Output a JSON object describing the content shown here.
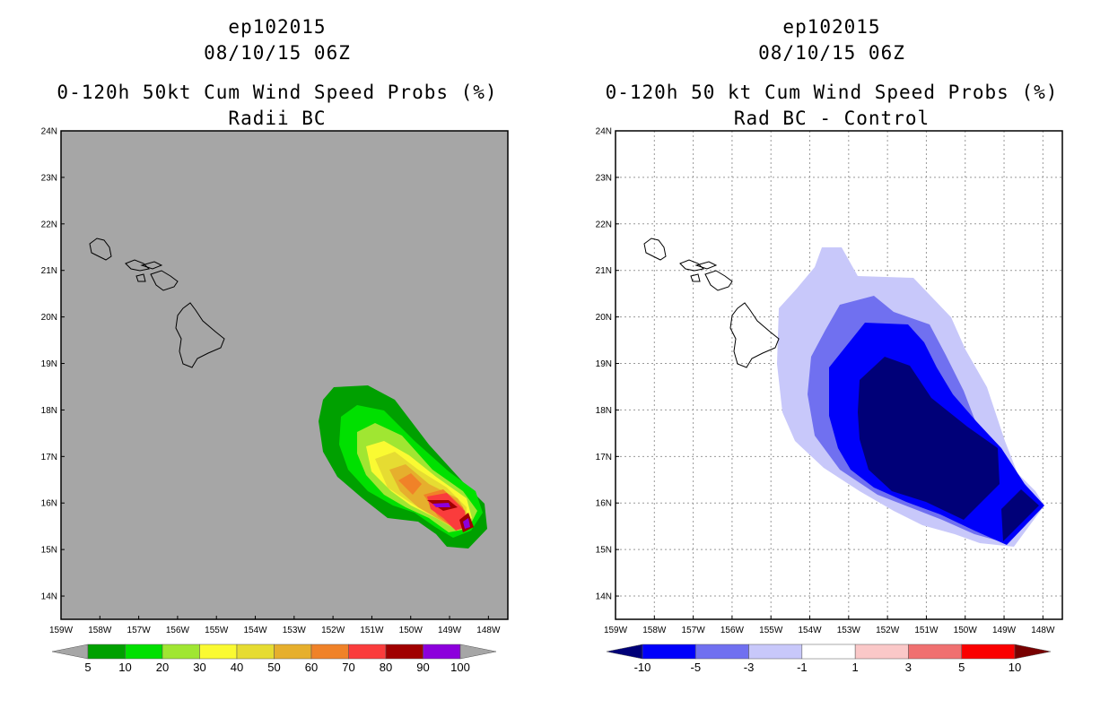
{
  "panels": [
    {
      "id": "left",
      "storm_id": "ep102015",
      "datetime": "08/10/15 06Z",
      "title": "0-120h 50kt Cum Wind Speed Probs (%)",
      "subtitle": "Radii BC",
      "background_color": "#a6a6a6",
      "grid": false,
      "colorbar": {
        "labels": [
          "5",
          "10",
          "20",
          "30",
          "40",
          "50",
          "60",
          "70",
          "80",
          "90",
          "100"
        ],
        "colors": [
          "#00a000",
          "#00e000",
          "#a0e632",
          "#fafa32",
          "#e6dc32",
          "#e6af2d",
          "#f08228",
          "#fa3c3c",
          "#a00000",
          "#8c00dc"
        ],
        "under_color": "#a6a6a6",
        "over_color": "#a6a6a6"
      }
    },
    {
      "id": "right",
      "storm_id": "ep102015",
      "datetime": "08/10/15 06Z",
      "title": "0-120h 50 kt Cum Wind Speed Probs (%)",
      "subtitle": "Rad BC - Control",
      "background_color": "#ffffff",
      "grid": true,
      "colorbar": {
        "labels": [
          "-10",
          "-5",
          "-3",
          "-1",
          "1",
          "3",
          "5",
          "10"
        ],
        "colors": [
          "#0000fa",
          "#7070f0",
          "#c8c8fa",
          "#ffffff",
          "#fac8c8",
          "#f07070",
          "#fa0000"
        ],
        "under_color": "#000078",
        "over_color": "#780000"
      }
    }
  ],
  "axes": {
    "lat_labels": [
      "24N",
      "23N",
      "22N",
      "21N",
      "20N",
      "19N",
      "18N",
      "17N",
      "16N",
      "15N",
      "14N"
    ],
    "lon_labels": [
      "159W",
      "158W",
      "157W",
      "156W",
      "155W",
      "154W",
      "153W",
      "152W",
      "151W",
      "150W",
      "149W",
      "148W"
    ],
    "lat_range": [
      13.5,
      24
    ],
    "lon_range": [
      -159,
      -147.5
    ]
  }
}
